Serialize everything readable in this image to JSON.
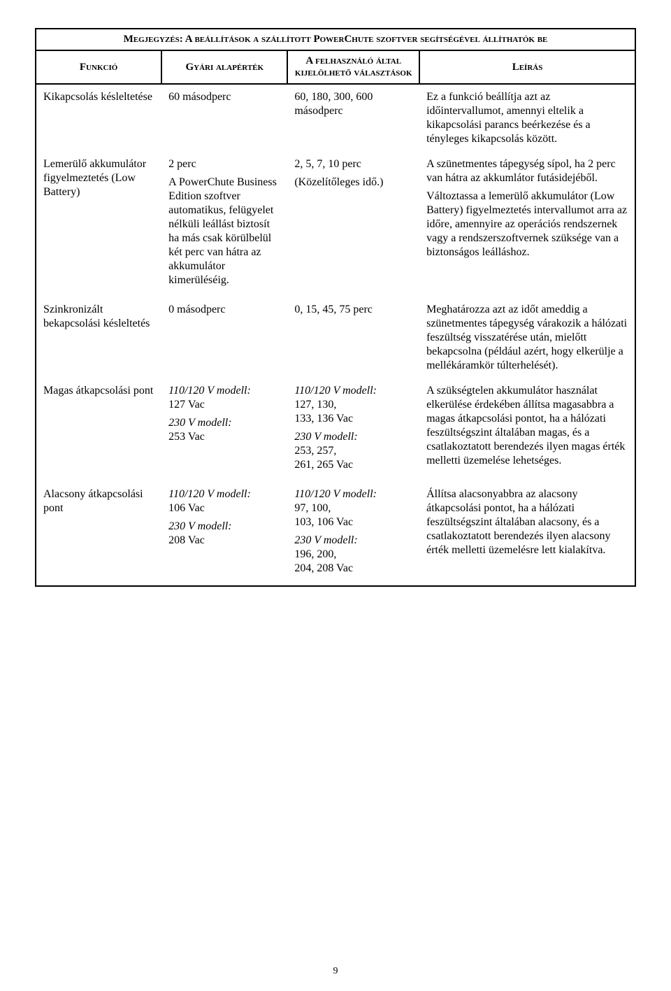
{
  "title": "Megjegyzés: A beállítások a szállított PowerChute szoftver segítségével állíthatók be",
  "headers": {
    "func": "Funkció",
    "def": "Gyári alapérték",
    "opt": "A felhasználó által kijelölhető választások",
    "desc": "Leírás"
  },
  "rows": {
    "r1": {
      "func": "Kikapcsolás késleltetése",
      "def": "60 másodperc",
      "opt": "60, 180, 300, 600 másodperc",
      "desc": "Ez a funkció beállítja azt az időintervallumot, amennyi eltelik a kikapcsolási parancs beérkezése és a tényleges kikapcsolás között."
    },
    "r2": {
      "func": "Lemerülő akkumulátor figyelmeztetés (Low Battery)",
      "def1": "2 perc",
      "def2": "A PowerChute Business Edition szoftver automatikus, felügyelet nélküli leállást biztosít ha más csak körülbelül két perc van hátra az akkumulátor kimerüléséig.",
      "opt1": "2, 5, 7, 10 perc",
      "opt2": "(Közelítőleges idő.)",
      "desc1": "A szünetmentes tápegység sípol, ha 2 perc van hátra az akkumlátor futásidejéből.",
      "desc2": "Változtassa a lemerülő akkumulátor (Low Battery) figyelmeztetés intervallumot arra az időre, amennyire az operációs rendszernek vagy a rendszerszoftvernek szüksége van a biztonságos leálláshoz."
    },
    "r3": {
      "func": "Szinkronizált bekapcsolási késleltetés",
      "def": "0 másodperc",
      "opt": "0, 15, 45, 75 perc",
      "desc": "Meghatározza azt az időt ameddig a szünetmentes tápegység várakozik a hálózati feszültség visszatérése után, mielőtt bekapcsolna (például azért, hogy elkerülje a mellékáramkör túlterhelését)."
    },
    "r4": {
      "func": "Magas átkapcsolási pont",
      "def_m1_label": "110/120 V modell:",
      "def_m1_val": "127 Vac",
      "def_m2_label": "230 V modell:",
      "def_m2_val": "253 Vac",
      "opt_m1_label": "110/120 V modell:",
      "opt_m1_val": "127, 130,\n133, 136 Vac",
      "opt_m2_label": "230 V modell:",
      "opt_m2_val": "253, 257,\n261, 265 Vac",
      "desc": "A szükségtelen akkumulátor használat elkerülése érdekében állítsa magasabbra a magas átkapcsolási pontot, ha a hálózati feszültségszint általában magas, és a csatlakoztatott berendezés ilyen magas érték melletti üzemelése lehetséges."
    },
    "r5": {
      "func": "Alacsony átkapcsolási pont",
      "def_m1_label": "110/120 V modell:",
      "def_m1_val": "106 Vac",
      "def_m2_label": "230 V modell:",
      "def_m2_val": "208 Vac",
      "opt_m1_label": "110/120 V modell:",
      "opt_m1_val": "97, 100,\n103, 106 Vac",
      "opt_m2_label": "230 V modell:",
      "opt_m2_val": "196, 200,\n204, 208 Vac",
      "desc": "Állítsa alacsonyabbra az alacsony átkapcsolási pontot, ha a hálózati feszültségszint általában alacsony, és a csatlakoztatott berendezés ilyen alacsony érték melletti üzemelésre lett kialakítva."
    }
  },
  "page_number": "9"
}
